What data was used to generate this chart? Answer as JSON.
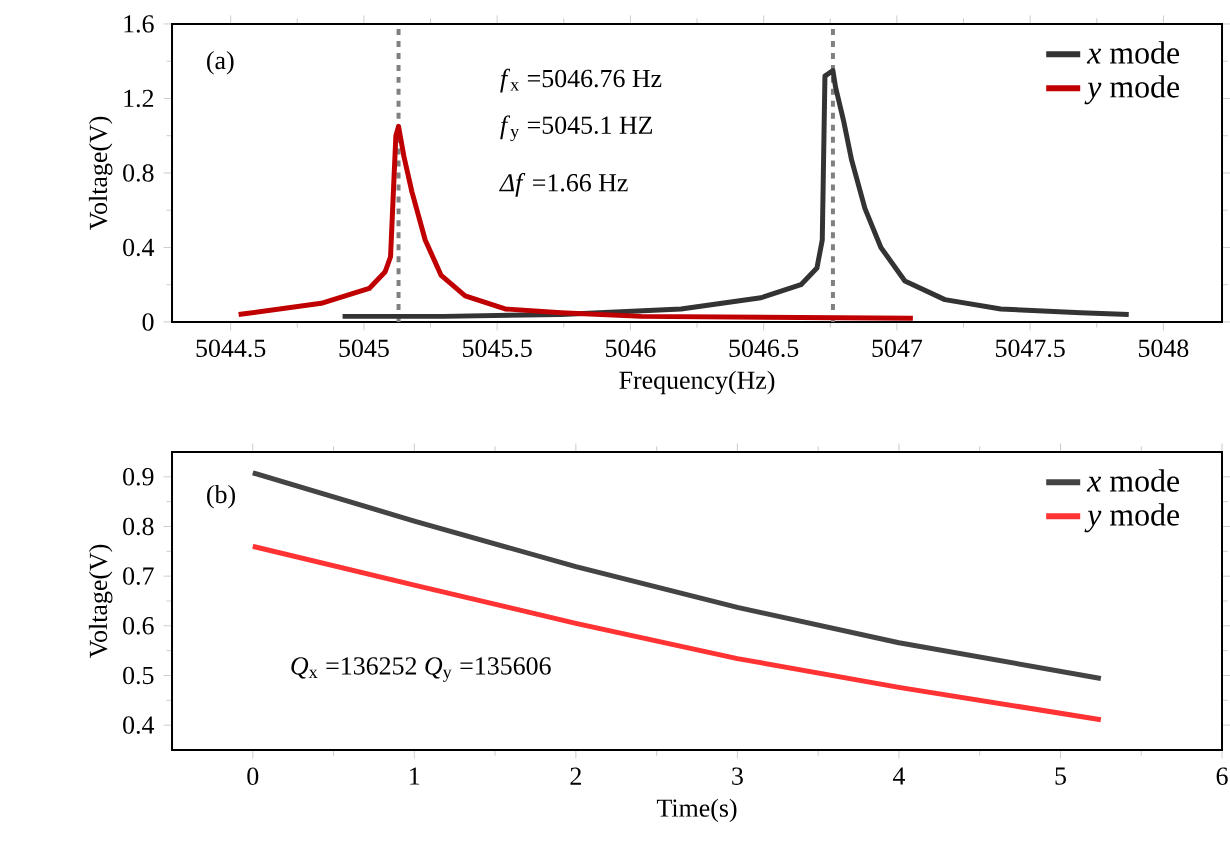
{
  "chart_data": [
    {
      "type": "line",
      "xlabel": "Frequency(Hz)",
      "ylabel": "Voltage(V)",
      "xlim": [
        5044.28,
        5048.22
      ],
      "ylim": [
        0,
        1.6
      ],
      "xticks": [
        5044.5,
        5045,
        5045.5,
        5046,
        5046.5,
        5047,
        5047.5,
        5048
      ],
      "yticks": [
        0,
        0.4,
        0.8,
        1.2,
        1.6
      ],
      "legend": "top right",
      "marker": "none",
      "line_style": "solid",
      "series": [
        {
          "name": "*x* mode",
          "color": "#333333",
          "x": [
            5044.92,
            5045.3,
            5045.74,
            5046.19,
            5046.49,
            5046.64,
            5046.7,
            5046.72,
            5046.73,
            5046.76,
            5046.77,
            5046.8,
            5046.83,
            5046.88,
            5046.94,
            5047.03,
            5047.18,
            5047.39,
            5047.69,
            5047.87
          ],
          "values": [
            0.03,
            0.03,
            0.04,
            0.07,
            0.13,
            0.2,
            0.29,
            0.44,
            1.32,
            1.35,
            1.26,
            1.08,
            0.87,
            0.61,
            0.4,
            0.22,
            0.12,
            0.07,
            0.05,
            0.04
          ]
        },
        {
          "name": "*y* mode",
          "color": "#c00000",
          "x": [
            5044.53,
            5044.84,
            5045.02,
            5045.08,
            5045.1,
            5045.12,
            5045.13,
            5045.15,
            5045.18,
            5045.23,
            5045.29,
            5045.38,
            5045.53,
            5045.74,
            5046.04,
            5047.06
          ],
          "values": [
            0.04,
            0.1,
            0.18,
            0.27,
            0.35,
            1.0,
            1.05,
            0.89,
            0.7,
            0.44,
            0.25,
            0.14,
            0.07,
            0.05,
            0.03,
            0.02
          ]
        }
      ],
      "ref_lines": [
        {
          "axis": "x",
          "value": 5045.13,
          "color": "#808080",
          "line_style": "dashed"
        },
        {
          "axis": "x",
          "value": 5046.76,
          "color": "#808080",
          "line_style": "dashed"
        }
      ],
      "annotations": [
        "(a)",
        "*f*$_{x}$ =5046.76 Hz",
        "*f*$_{y}$ =5045.1 HZ",
        "*Δf* =1.66 Hz"
      ]
    },
    {
      "type": "line",
      "xlabel": "Time(s)",
      "ylabel": "Voltage(V)",
      "xlim": [
        -0.5,
        6
      ],
      "ylim": [
        0.35,
        0.95
      ],
      "xticks": [
        0,
        1,
        2,
        3,
        4,
        5,
        6
      ],
      "yticks": [
        0.4,
        0.5,
        0.6,
        0.7,
        0.8,
        0.9
      ],
      "legend": "top right",
      "marker": "none",
      "line_style": "solid",
      "series": [
        {
          "name": "*x* mode",
          "color": "#444444",
          "x": [
            0,
            1,
            2,
            3,
            4,
            5.25
          ],
          "values": [
            0.908,
            0.811,
            0.719,
            0.637,
            0.566,
            0.494
          ]
        },
        {
          "name": "*y* mode",
          "color": "#ff3333",
          "x": [
            0,
            1,
            2,
            3,
            4,
            5.25
          ],
          "values": [
            0.76,
            0.682,
            0.605,
            0.534,
            0.476,
            0.411
          ]
        }
      ],
      "annotations": [
        "(b)",
        "*Q*$_{x}$ =136252  *Q*$_{y}$ =135606"
      ]
    }
  ]
}
